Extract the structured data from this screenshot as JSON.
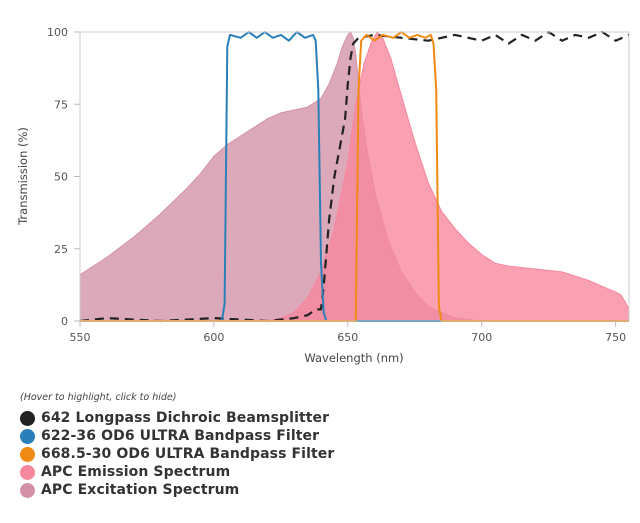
{
  "chart_data": {
    "type": "area",
    "title": "",
    "xlabel": "Wavelength (nm)",
    "ylabel": "Transmission (%)",
    "xlim": [
      550,
      755
    ],
    "ylim": [
      0,
      100
    ],
    "x_ticks": [
      550,
      600,
      650,
      700,
      750
    ],
    "y_ticks": [
      0,
      25,
      50,
      75,
      100
    ],
    "grid": false,
    "legend_position": "bottom",
    "series": [
      {
        "name": "APC Excitation Spectrum",
        "kind": "area",
        "color": "#d291a6",
        "points": [
          [
            550,
            16
          ],
          [
            560,
            22
          ],
          [
            570,
            29
          ],
          [
            580,
            37
          ],
          [
            590,
            46
          ],
          [
            595,
            51
          ],
          [
            600,
            57
          ],
          [
            605,
            61
          ],
          [
            610,
            64
          ],
          [
            615,
            67
          ],
          [
            620,
            70
          ],
          [
            625,
            72
          ],
          [
            630,
            73
          ],
          [
            635,
            74
          ],
          [
            640,
            77
          ],
          [
            643,
            82
          ],
          [
            646,
            89
          ],
          [
            648,
            95
          ],
          [
            650,
            99
          ],
          [
            651,
            100
          ],
          [
            652,
            98
          ],
          [
            653,
            92
          ],
          [
            654,
            83
          ],
          [
            655,
            73
          ],
          [
            657,
            60
          ],
          [
            660,
            45
          ],
          [
            665,
            28
          ],
          [
            670,
            17
          ],
          [
            675,
            10
          ],
          [
            680,
            5
          ],
          [
            685,
            3
          ],
          [
            690,
            1
          ],
          [
            700,
            0
          ],
          [
            755,
            0
          ]
        ]
      },
      {
        "name": "APC Emission Spectrum",
        "kind": "area",
        "color": "#f7879d",
        "points": [
          [
            620,
            0
          ],
          [
            625,
            1
          ],
          [
            630,
            3
          ],
          [
            635,
            8
          ],
          [
            640,
            17
          ],
          [
            645,
            32
          ],
          [
            650,
            55
          ],
          [
            653,
            75
          ],
          [
            656,
            89
          ],
          [
            659,
            97
          ],
          [
            661,
            100
          ],
          [
            663,
            98
          ],
          [
            666,
            91
          ],
          [
            670,
            78
          ],
          [
            675,
            62
          ],
          [
            680,
            48
          ],
          [
            685,
            38
          ],
          [
            690,
            32
          ],
          [
            695,
            27
          ],
          [
            700,
            23
          ],
          [
            705,
            20
          ],
          [
            710,
            19
          ],
          [
            720,
            18
          ],
          [
            730,
            17
          ],
          [
            740,
            14
          ],
          [
            745,
            12
          ],
          [
            750,
            10
          ],
          [
            752,
            9
          ],
          [
            754,
            6
          ],
          [
            755,
            4
          ],
          [
            755,
            0
          ]
        ]
      },
      {
        "name": "642 Longpass Dichroic Beamsplitter",
        "kind": "line",
        "dashed": true,
        "color": "#222222",
        "points": [
          [
            550,
            0
          ],
          [
            560,
            1
          ],
          [
            580,
            0
          ],
          [
            600,
            1
          ],
          [
            620,
            0
          ],
          [
            630,
            1
          ],
          [
            635,
            2
          ],
          [
            638,
            4
          ],
          [
            640,
            4
          ],
          [
            641,
            12
          ],
          [
            643,
            35
          ],
          [
            645,
            50
          ],
          [
            647,
            60
          ],
          [
            649,
            70
          ],
          [
            650,
            82
          ],
          [
            651,
            91
          ],
          [
            652,
            96
          ],
          [
            654,
            98
          ],
          [
            660,
            99
          ],
          [
            670,
            98
          ],
          [
            680,
            97
          ],
          [
            690,
            99
          ],
          [
            700,
            97
          ],
          [
            705,
            99
          ],
          [
            710,
            96
          ],
          [
            715,
            99
          ],
          [
            720,
            97
          ],
          [
            725,
            100
          ],
          [
            730,
            97
          ],
          [
            735,
            99
          ],
          [
            740,
            98
          ],
          [
            745,
            100
          ],
          [
            750,
            97
          ],
          [
            755,
            99
          ]
        ]
      },
      {
        "name": "622-36 OD6 ULTRA Bandpass Filter",
        "kind": "line",
        "color": "#2b7fb8",
        "points": [
          [
            550,
            0
          ],
          [
            603,
            0
          ],
          [
            604,
            6
          ],
          [
            605,
            95
          ],
          [
            606,
            99
          ],
          [
            610,
            98
          ],
          [
            613,
            100
          ],
          [
            616,
            98
          ],
          [
            619,
            100
          ],
          [
            622,
            98
          ],
          [
            625,
            99
          ],
          [
            628,
            97
          ],
          [
            631,
            100
          ],
          [
            634,
            98
          ],
          [
            637,
            99
          ],
          [
            638,
            97
          ],
          [
            639,
            80
          ],
          [
            640,
            20
          ],
          [
            641,
            3
          ],
          [
            642,
            0
          ],
          [
            755,
            0
          ]
        ]
      },
      {
        "name": "668.5-30 OD6 ULTRA Bandpass Filter",
        "kind": "line",
        "color": "#f08a14",
        "points": [
          [
            550,
            0
          ],
          [
            653,
            0
          ],
          [
            654,
            80
          ],
          [
            655,
            97
          ],
          [
            657,
            99
          ],
          [
            660,
            97
          ],
          [
            663,
            99
          ],
          [
            667,
            98
          ],
          [
            670,
            100
          ],
          [
            673,
            98
          ],
          [
            676,
            99
          ],
          [
            679,
            98
          ],
          [
            681,
            99
          ],
          [
            682,
            96
          ],
          [
            683,
            80
          ],
          [
            684,
            5
          ],
          [
            685,
            0
          ],
          [
            755,
            0
          ]
        ]
      }
    ]
  },
  "legend": {
    "hint": "(Hover to highlight, click to hide)",
    "items": [
      {
        "label": "642 Longpass Dichroic Beamsplitter",
        "color": "#222222"
      },
      {
        "label": "622-36 OD6 ULTRA Bandpass Filter",
        "color": "#2b7fb8"
      },
      {
        "label": "668.5-30 OD6 ULTRA Bandpass Filter",
        "color": "#f08a14"
      },
      {
        "label": "APC Emission Spectrum",
        "color": "#f7879d"
      },
      {
        "label": "APC Excitation Spectrum",
        "color": "#d291a6"
      }
    ]
  }
}
